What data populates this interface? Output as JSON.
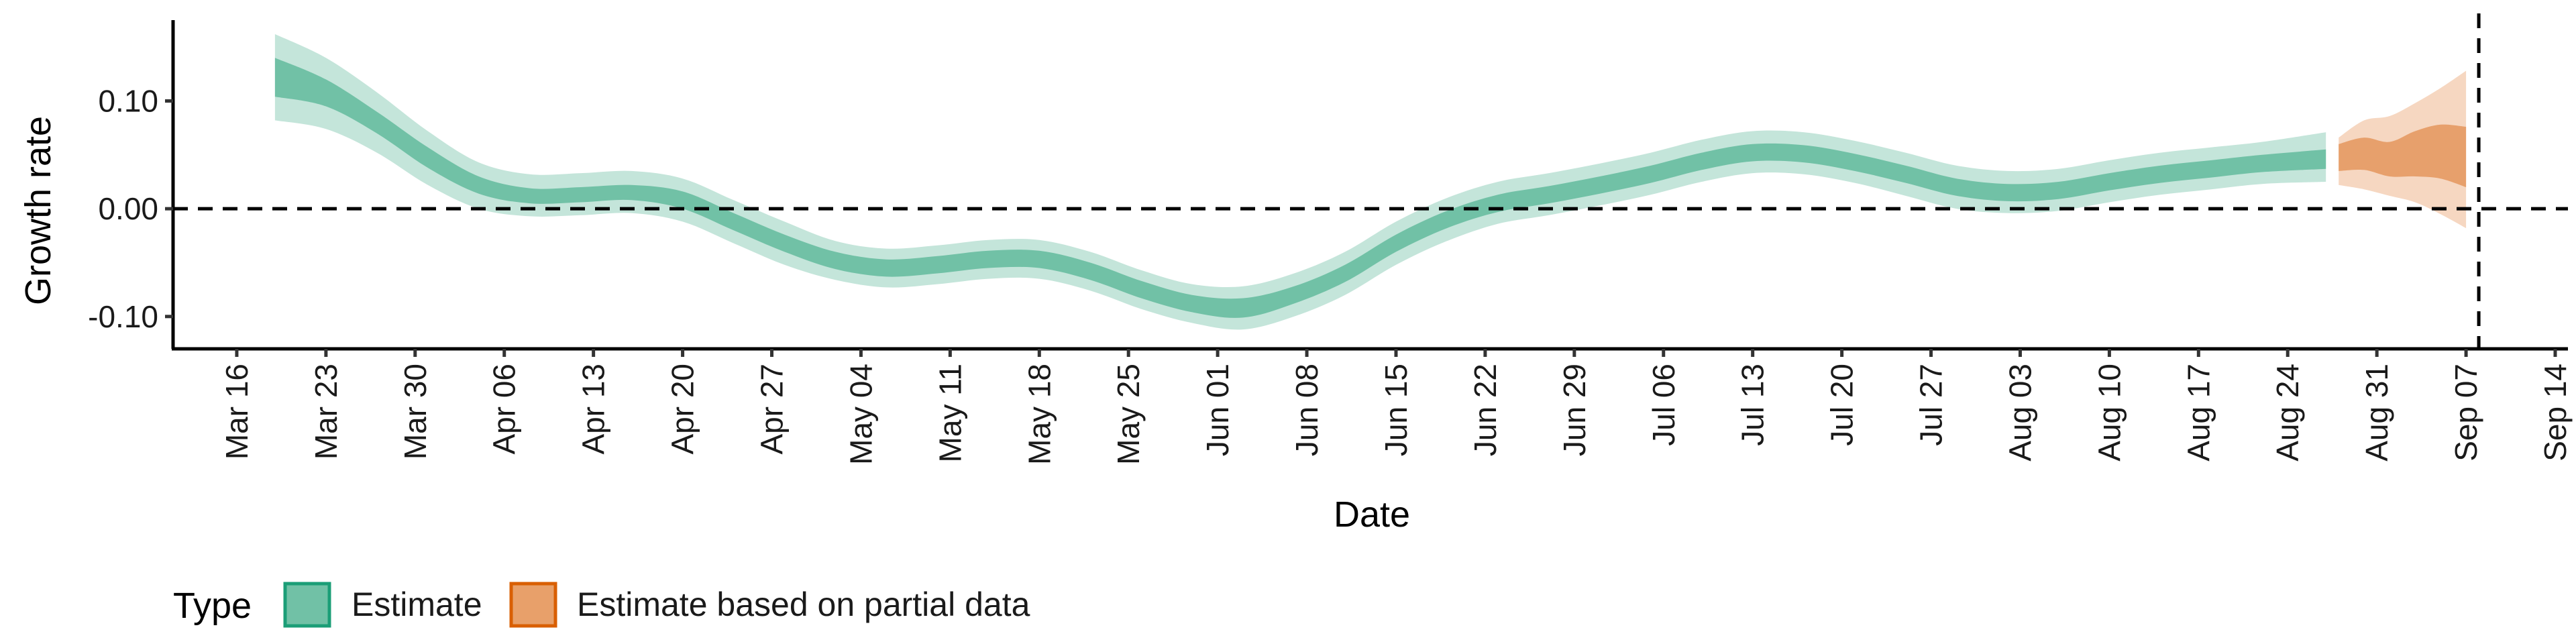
{
  "chart_data": {
    "type": "area",
    "xlabel": "Date",
    "ylabel": "Growth rate",
    "x_range": [
      "2020-03-11",
      "2020-09-15"
    ],
    "ylim": [
      -0.13,
      0.175
    ],
    "y_ticks": [
      {
        "value": 0.1,
        "label": "0.10"
      },
      {
        "value": 0.0,
        "label": "0.00"
      },
      {
        "value": -0.1,
        "label": "-0.10"
      }
    ],
    "x_ticks": [
      {
        "date": "2020-03-16",
        "label": "Mar 16"
      },
      {
        "date": "2020-03-23",
        "label": "Mar 23"
      },
      {
        "date": "2020-03-30",
        "label": "Mar 30"
      },
      {
        "date": "2020-04-06",
        "label": "Apr 06"
      },
      {
        "date": "2020-04-13",
        "label": "Apr 13"
      },
      {
        "date": "2020-04-20",
        "label": "Apr 20"
      },
      {
        "date": "2020-04-27",
        "label": "Apr 27"
      },
      {
        "date": "2020-05-04",
        "label": "May 04"
      },
      {
        "date": "2020-05-11",
        "label": "May 11"
      },
      {
        "date": "2020-05-18",
        "label": "May 18"
      },
      {
        "date": "2020-05-25",
        "label": "May 25"
      },
      {
        "date": "2020-06-01",
        "label": "Jun 01"
      },
      {
        "date": "2020-06-08",
        "label": "Jun 08"
      },
      {
        "date": "2020-06-15",
        "label": "Jun 15"
      },
      {
        "date": "2020-06-22",
        "label": "Jun 22"
      },
      {
        "date": "2020-06-29",
        "label": "Jun 29"
      },
      {
        "date": "2020-07-06",
        "label": "Jul 06"
      },
      {
        "date": "2020-07-13",
        "label": "Jul 13"
      },
      {
        "date": "2020-07-20",
        "label": "Jul 20"
      },
      {
        "date": "2020-07-27",
        "label": "Jul 27"
      },
      {
        "date": "2020-08-03",
        "label": "Aug 03"
      },
      {
        "date": "2020-08-10",
        "label": "Aug 10"
      },
      {
        "date": "2020-08-17",
        "label": "Aug 17"
      },
      {
        "date": "2020-08-24",
        "label": "Aug 24"
      },
      {
        "date": "2020-08-31",
        "label": "Aug 31"
      },
      {
        "date": "2020-09-07",
        "label": "Sep 07"
      },
      {
        "date": "2020-09-14",
        "label": "Sep 14"
      }
    ],
    "reference_lines": {
      "hline_y": 0,
      "vline_date": "2020-09-08"
    },
    "legend": {
      "position": "bottom-left",
      "title": "Type",
      "entries": [
        {
          "label": "Estimate",
          "fill": "#71c1a6",
          "stroke": "#1b9e77"
        },
        {
          "label": "Estimate based on partial data",
          "fill": "#e8a06a",
          "stroke": "#d95f02"
        }
      ]
    },
    "colors": {
      "estimate_inner": "#71c1a6",
      "estimate_outer": "#c4e5da",
      "partial_inner": "#e7a06c",
      "partial_outer": "#f6d7c1"
    },
    "series": [
      {
        "name": "Estimate",
        "x": [
          "2020-03-19",
          "2020-03-23",
          "2020-03-27",
          "2020-03-31",
          "2020-04-04",
          "2020-04-08",
          "2020-04-12",
          "2020-04-16",
          "2020-04-20",
          "2020-04-24",
          "2020-04-28",
          "2020-05-02",
          "2020-05-06",
          "2020-05-10",
          "2020-05-14",
          "2020-05-18",
          "2020-05-22",
          "2020-05-26",
          "2020-05-30",
          "2020-06-03",
          "2020-06-07",
          "2020-06-11",
          "2020-06-15",
          "2020-06-19",
          "2020-06-23",
          "2020-06-27",
          "2020-07-01",
          "2020-07-05",
          "2020-07-09",
          "2020-07-13",
          "2020-07-17",
          "2020-07-21",
          "2020-07-25",
          "2020-07-29",
          "2020-08-02",
          "2020-08-06",
          "2020-08-10",
          "2020-08-14",
          "2020-08-18",
          "2020-08-22",
          "2020-08-27"
        ],
        "y": [
          0.122,
          0.108,
          0.08,
          0.048,
          0.022,
          0.012,
          0.013,
          0.015,
          0.008,
          -0.012,
          -0.032,
          -0.048,
          -0.055,
          -0.052,
          -0.047,
          -0.047,
          -0.058,
          -0.075,
          -0.088,
          -0.092,
          -0.08,
          -0.06,
          -0.032,
          -0.01,
          0.005,
          0.013,
          0.022,
          0.032,
          0.044,
          0.052,
          0.051,
          0.043,
          0.032,
          0.02,
          0.015,
          0.017,
          0.025,
          0.032,
          0.037,
          0.042,
          0.046
        ],
        "lower_50": [
          0.104,
          0.095,
          0.07,
          0.038,
          0.014,
          0.005,
          0.006,
          0.008,
          0.0,
          -0.02,
          -0.04,
          -0.056,
          -0.063,
          -0.06,
          -0.055,
          -0.055,
          -0.066,
          -0.083,
          -0.096,
          -0.101,
          -0.088,
          -0.068,
          -0.04,
          -0.018,
          -0.003,
          0.005,
          0.014,
          0.024,
          0.036,
          0.044,
          0.043,
          0.035,
          0.024,
          0.012,
          0.007,
          0.009,
          0.017,
          0.024,
          0.029,
          0.034,
          0.037
        ],
        "upper_50": [
          0.14,
          0.12,
          0.09,
          0.057,
          0.03,
          0.019,
          0.02,
          0.022,
          0.016,
          -0.004,
          -0.024,
          -0.04,
          -0.047,
          -0.044,
          -0.039,
          -0.039,
          -0.05,
          -0.067,
          -0.08,
          -0.083,
          -0.072,
          -0.052,
          -0.024,
          -0.002,
          0.013,
          0.021,
          0.03,
          0.04,
          0.052,
          0.06,
          0.059,
          0.051,
          0.04,
          0.028,
          0.023,
          0.025,
          0.033,
          0.04,
          0.045,
          0.05,
          0.055
        ],
        "lower_90": [
          0.082,
          0.074,
          0.052,
          0.022,
          0.0,
          -0.007,
          -0.006,
          -0.004,
          -0.012,
          -0.032,
          -0.052,
          -0.066,
          -0.073,
          -0.07,
          -0.065,
          -0.065,
          -0.076,
          -0.093,
          -0.106,
          -0.112,
          -0.1,
          -0.08,
          -0.052,
          -0.03,
          -0.014,
          -0.006,
          0.003,
          0.013,
          0.025,
          0.033,
          0.032,
          0.024,
          0.012,
          0.0,
          -0.004,
          -0.002,
          0.006,
          0.013,
          0.018,
          0.023,
          0.025
        ],
        "upper_90": [
          0.162,
          0.14,
          0.108,
          0.072,
          0.043,
          0.032,
          0.033,
          0.035,
          0.028,
          0.008,
          -0.012,
          -0.03,
          -0.037,
          -0.034,
          -0.029,
          -0.029,
          -0.04,
          -0.057,
          -0.07,
          -0.072,
          -0.06,
          -0.04,
          -0.012,
          0.01,
          0.025,
          0.033,
          0.042,
          0.052,
          0.064,
          0.072,
          0.071,
          0.063,
          0.052,
          0.04,
          0.035,
          0.037,
          0.045,
          0.052,
          0.057,
          0.062,
          0.071
        ]
      },
      {
        "name": "Estimate based on partial data",
        "x": [
          "2020-08-28",
          "2020-08-30",
          "2020-09-01",
          "2020-09-03",
          "2020-09-05",
          "2020-09-07"
        ],
        "y": [
          0.05,
          0.056,
          0.05,
          0.058,
          0.062,
          0.055
        ],
        "lower_50": [
          0.035,
          0.036,
          0.03,
          0.03,
          0.028,
          0.02
        ],
        "upper_50": [
          0.06,
          0.066,
          0.062,
          0.072,
          0.078,
          0.076
        ],
        "lower_90": [
          0.022,
          0.018,
          0.012,
          0.006,
          -0.005,
          -0.018
        ],
        "upper_90": [
          0.066,
          0.082,
          0.086,
          0.098,
          0.112,
          0.128
        ]
      }
    ]
  }
}
